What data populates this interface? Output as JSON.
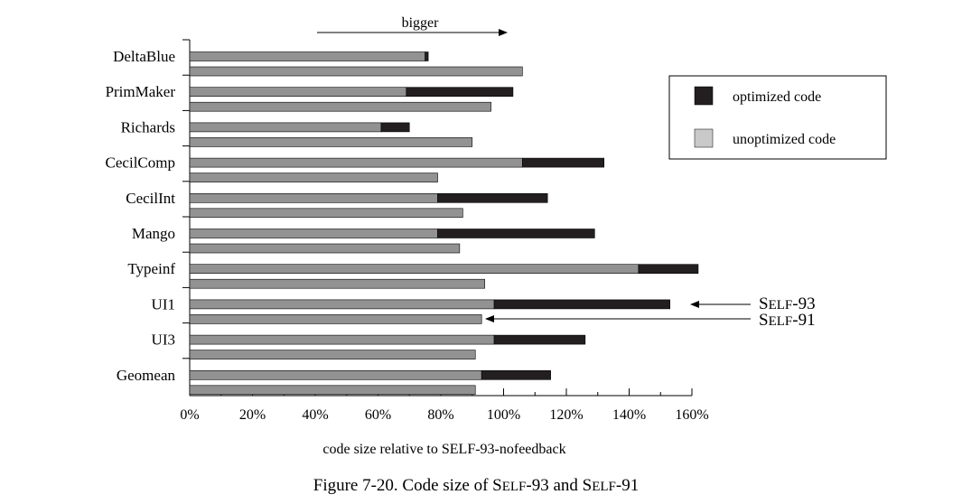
{
  "chart_data": {
    "type": "bar",
    "orientation": "horizontal",
    "stacked": true,
    "title": "",
    "xlabel": "code size relative to SELF-93-nofeedback",
    "ylabel": "",
    "xlim": [
      0,
      160
    ],
    "x_ticks": [
      "0%",
      "20%",
      "40%",
      "60%",
      "80%",
      "100%",
      "120%",
      "140%",
      "160%"
    ],
    "categories": [
      "DeltaBlue",
      "PrimMaker",
      "Richards",
      "CecilComp",
      "CecilInt",
      "Mango",
      "Typeinf",
      "UI1",
      "UI3",
      "Geomean"
    ],
    "series": [
      {
        "name": "SELF-93",
        "unoptimized": [
          75,
          69,
          61,
          106,
          79,
          79,
          143,
          97,
          97,
          93
        ],
        "optimized": [
          1,
          34,
          9,
          26,
          35,
          50,
          19,
          56,
          29,
          22
        ]
      },
      {
        "name": "SELF-91",
        "unoptimized": [
          106,
          96,
          90,
          79,
          87,
          86,
          94,
          93,
          91,
          91
        ]
      }
    ],
    "legend": {
      "position": "top-right",
      "items": [
        {
          "label": "optimized code",
          "color": "#231f20"
        },
        {
          "label": "unoptimized code",
          "color": "#c9c9c9"
        }
      ]
    },
    "annotations": {
      "top_arrow_label": "bigger",
      "self93": {
        "prefix": "S",
        "smallcaps": "ELF",
        "suffix": "-93"
      },
      "self91": {
        "prefix": "S",
        "smallcaps": "ELF",
        "suffix": "-91"
      }
    },
    "caption": {
      "lead": "Figure 7-20.  Code size of S",
      "mid_sc": "ELF",
      "mid": "-93 and S",
      "end_sc": "ELF",
      "end": "-91"
    },
    "colors": {
      "optimized": "#231f20",
      "unoptimized_bar": "#929292",
      "legend_unoptimized": "#c9c9c9"
    }
  }
}
